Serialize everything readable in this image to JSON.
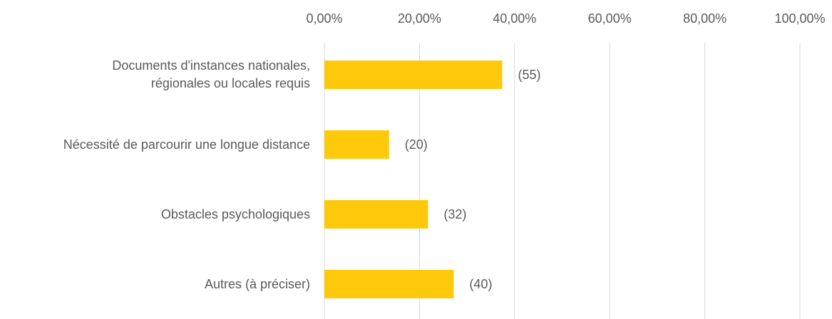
{
  "chart_data": {
    "type": "bar",
    "orientation": "horizontal",
    "categories": [
      "Documents d'instances nationales,\nrégionales ou locales requis",
      "Nécessité de parcourir une longue distance",
      "Obstacles psychologiques",
      "Autres (à préciser)"
    ],
    "values": [
      37.4,
      13.6,
      21.8,
      27.2
    ],
    "annotations": [
      "(55)",
      "(20)",
      "(32)",
      "(40)"
    ],
    "color": "#ffc90b",
    "xlim": [
      0,
      100
    ],
    "xticks": [
      {
        "value": 0,
        "label": "0,00%"
      },
      {
        "value": 20,
        "label": "20,00%"
      },
      {
        "value": 40,
        "label": "40,00%"
      },
      {
        "value": 60,
        "label": "60,00%"
      },
      {
        "value": 80,
        "label": "80,00%"
      },
      {
        "value": 100,
        "label": "100,00%"
      }
    ],
    "grid": true
  }
}
